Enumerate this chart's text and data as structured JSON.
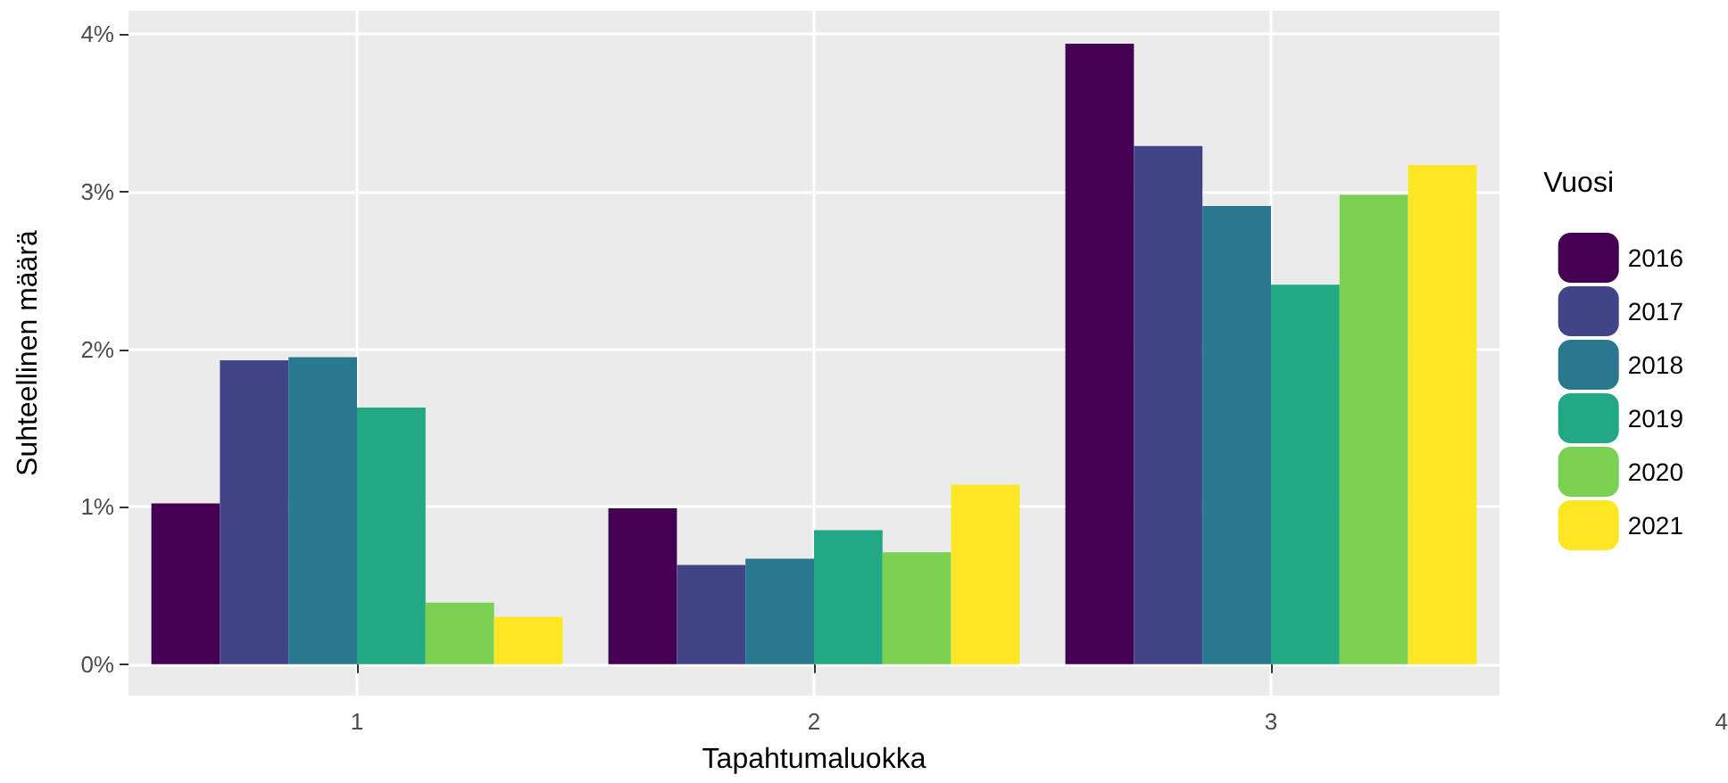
{
  "chart_data": {
    "type": "bar",
    "xlabel": "Tapahtumaluokka",
    "ylabel": "Suhteellinen määrä",
    "legend_title": "Vuosi",
    "categories": [
      "1",
      "2",
      "3"
    ],
    "series": [
      {
        "name": "2016",
        "color": "#440154",
        "values": [
          1.02,
          0.99,
          3.94
        ]
      },
      {
        "name": "2017",
        "color": "#414487",
        "values": [
          1.93,
          0.63,
          3.29
        ]
      },
      {
        "name": "2018",
        "color": "#2a788e",
        "values": [
          1.95,
          0.67,
          2.91
        ]
      },
      {
        "name": "2019",
        "color": "#22a884",
        "values": [
          1.63,
          0.85,
          2.41
        ]
      },
      {
        "name": "2020",
        "color": "#7ad151",
        "values": [
          0.39,
          0.71,
          2.98
        ]
      },
      {
        "name": "2021",
        "color": "#fde725",
        "values": [
          0.3,
          1.14,
          3.17
        ]
      }
    ],
    "ylim": [
      -0.2,
      4.15
    ],
    "yticks": [
      {
        "value": 0,
        "label": "0%"
      },
      {
        "value": 1,
        "label": "1%"
      },
      {
        "value": 2,
        "label": "2%"
      },
      {
        "value": 3,
        "label": "3%"
      },
      {
        "value": 4,
        "label": "4%"
      }
    ],
    "annotations": [
      "4"
    ],
    "grid": true,
    "legend": "right"
  }
}
